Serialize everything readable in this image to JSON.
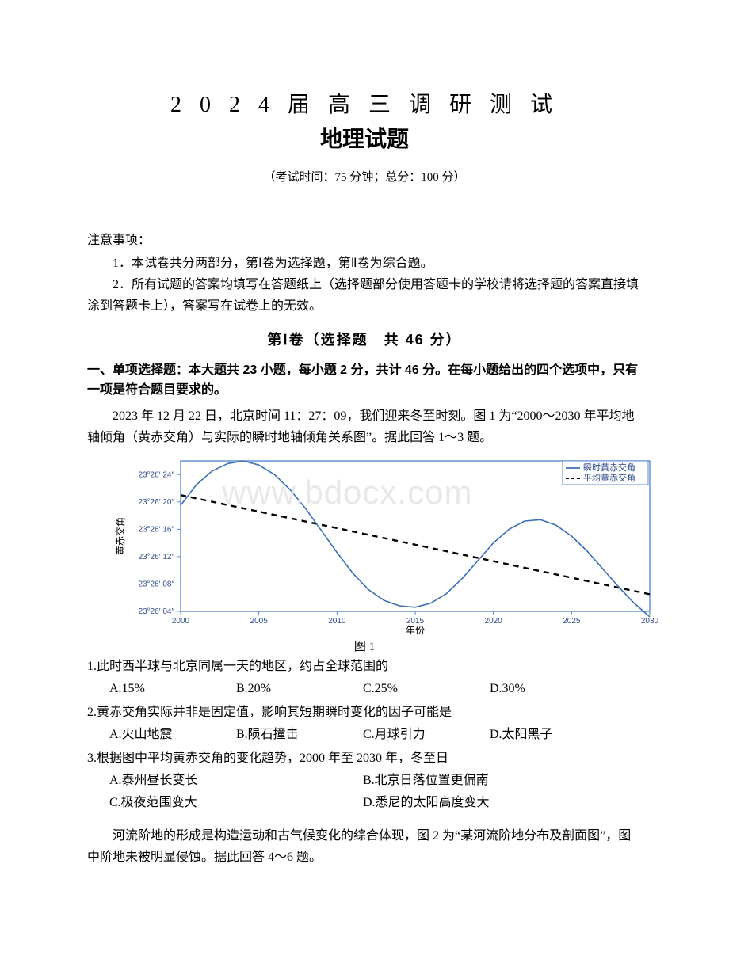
{
  "header": {
    "title_line1": "2 0 2 4 届 高 三 调 研 测 试",
    "title_line2": "地理试题",
    "exam_info": "（考试时间：75 分钟；总分：100 分）"
  },
  "notice": {
    "head": "注意事项：",
    "line1": "1．本试卷共分两部分，第Ⅰ卷为选择题，第Ⅱ卷为综合题。",
    "line2": "2．所有试题的答案均填写在答题纸上（选择题部分使用答题卡的学校请将选择题的答案直接填涂到答题卡上），答案写在试卷上的无效。"
  },
  "section1": {
    "title": "第Ⅰ卷（选择题　共 46 分）",
    "instruction": "一、单项选择题：本大题共 23 小题，每小题 2 分，共计 46 分。在每小题给出的四个选项中，只有一项是符合题目要求的。"
  },
  "passage1": "2023 年 12 月 22 日，北京时间 11：27：09，我们迎来冬至时刻。图 1 为“2000～2030 年平均地轴倾角（黄赤交角）与实际的瞬时地轴倾角关系图”。据此回答 1～3 题。",
  "chart": {
    "type": "line",
    "x_label": "年份",
    "y_label": "黄赤交角",
    "x_ticks": [
      "2000",
      "2005",
      "2010",
      "2015",
      "2020",
      "2025",
      "2030"
    ],
    "y_ticks": [
      "23°26′ 04″",
      "23°26′ 08″",
      "23°26′ 12″",
      "23°26′ 16″",
      "23°26′ 20″",
      "23°26′ 24″"
    ],
    "x_domain": [
      2000,
      2030
    ],
    "y_domain_sec": [
      4,
      26
    ],
    "legend": {
      "series1": "瞬时黄赤交角",
      "series2": "平均黄赤交角"
    },
    "colors": {
      "series1": "#3b6fb6",
      "series2": "#000000",
      "border": "#5b8bd0",
      "tick_text": "#2b4a8a",
      "axis_label": "#000000",
      "background": "#ffffff"
    },
    "series1_points": [
      [
        2000,
        19.5
      ],
      [
        2001,
        22.5
      ],
      [
        2002,
        24.5
      ],
      [
        2003,
        25.6
      ],
      [
        2004,
        26.0
      ],
      [
        2005,
        25.4
      ],
      [
        2006,
        24.0
      ],
      [
        2007,
        21.8
      ],
      [
        2008,
        19.0
      ],
      [
        2009,
        15.8
      ],
      [
        2010,
        12.6
      ],
      [
        2011,
        9.6
      ],
      [
        2012,
        7.2
      ],
      [
        2013,
        5.6
      ],
      [
        2014,
        4.8
      ],
      [
        2015,
        4.6
      ],
      [
        2016,
        5.2
      ],
      [
        2017,
        6.6
      ],
      [
        2018,
        8.8
      ],
      [
        2019,
        11.4
      ],
      [
        2020,
        14.0
      ],
      [
        2021,
        16.0
      ],
      [
        2022,
        17.2
      ],
      [
        2023,
        17.4
      ],
      [
        2024,
        16.6
      ],
      [
        2025,
        15.0
      ],
      [
        2026,
        12.8
      ],
      [
        2027,
        10.2
      ],
      [
        2028,
        7.6
      ],
      [
        2029,
        5.2
      ],
      [
        2030,
        3.2
      ]
    ],
    "series2_points": [
      [
        2000,
        21.0
      ],
      [
        2030,
        6.5
      ]
    ],
    "font_size_ticks": 10,
    "font_size_legend": 11,
    "line_width": 1.6,
    "dash_pattern": "7,6"
  },
  "fig1_caption": "图 1",
  "watermark": "www.bdocx.com",
  "q1": {
    "stem": "1.此时西半球与北京同属一天的地区，约占全球范围的",
    "A": "A.15%",
    "B": "B.20%",
    "C": "C.25%",
    "D": "D.30%"
  },
  "q2": {
    "stem": "2.黄赤交角实际并非是固定值，影响其短期瞬时变化的因子可能是",
    "A": "A.火山地震",
    "B": "B.陨石撞击",
    "C": "C.月球引力",
    "D": "D.太阳黑子"
  },
  "q3": {
    "stem": "3.根据图中平均黄赤交角的变化趋势，2000 年至 2030 年，冬至日",
    "A": "A.泰州昼长变长",
    "B": "B.北京日落位置更偏南",
    "C": "C.极夜范围变大",
    "D": "D.悉尼的太阳高度变大"
  },
  "passage2": "河流阶地的形成是构造运动和古气候变化的综合体现，图 2 为“某河流阶地分布及剖面图”，图中阶地未被明显侵蚀。据此回答 4～6 题。"
}
